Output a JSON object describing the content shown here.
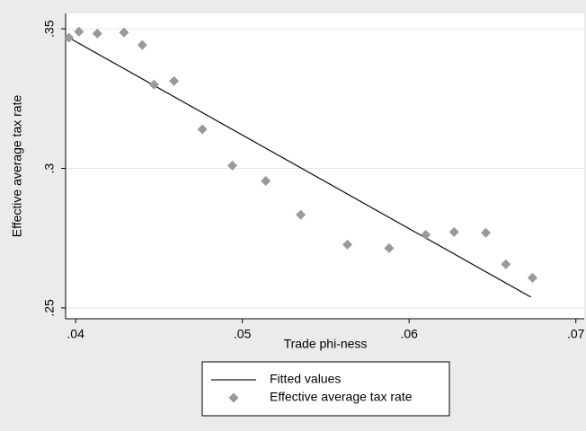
{
  "chart_data": {
    "type": "scatter",
    "xlabel": "Trade phi-ness",
    "ylabel": "Effective average tax rate",
    "xlim": [
      0.0394,
      0.0705
    ],
    "ylim": [
      0.2461,
      0.3555
    ],
    "xticks": [
      {
        "value": 0.04,
        "label": ".04"
      },
      {
        "value": 0.05,
        "label": ".05"
      },
      {
        "value": 0.06,
        "label": ".06"
      },
      {
        "value": 0.07,
        "label": ".07"
      }
    ],
    "yticks": [
      {
        "value": 0.25,
        "label": ".25"
      },
      {
        "value": 0.3,
        "label": ".3"
      },
      {
        "value": 0.35,
        "label": ".35"
      }
    ],
    "grid": true,
    "series": [
      {
        "name": "Fitted values",
        "type": "line",
        "color": "#1a1a1a",
        "x": [
          0.0396,
          0.0673
        ],
        "values": [
          0.3468,
          0.2539
        ]
      },
      {
        "name": "Effective average tax rate",
        "type": "diamond",
        "color": "#999999",
        "x": [
          0.0396,
          0.0402,
          0.0413,
          0.0429,
          0.044,
          0.0447,
          0.0459,
          0.0476,
          0.0494,
          0.0514,
          0.0535,
          0.0563,
          0.0588,
          0.061,
          0.0627,
          0.0646,
          0.0658,
          0.0674
        ],
        "values": [
          0.3468,
          0.349,
          0.3483,
          0.3487,
          0.3442,
          0.33,
          0.3313,
          0.314,
          0.301,
          0.2955,
          0.2834,
          0.2727,
          0.2714,
          0.2762,
          0.2772,
          0.2769,
          0.2656,
          0.2608
        ]
      }
    ]
  }
}
